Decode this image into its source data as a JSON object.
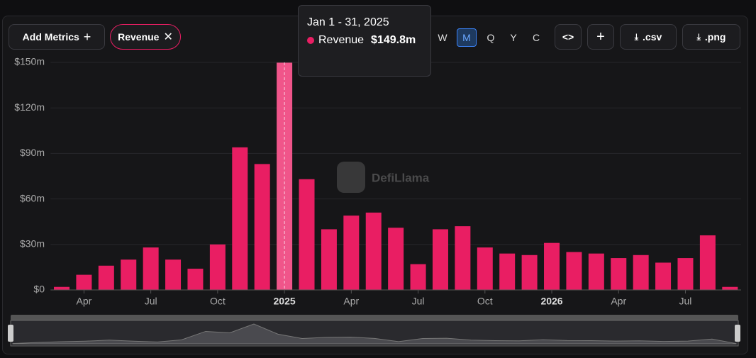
{
  "toolbar": {
    "add_metrics": "Add Metrics",
    "periods": [
      "W",
      "M",
      "Q",
      "Y",
      "C"
    ],
    "active_period": "M",
    "csv": ".csv",
    "png": ".png"
  },
  "watermark": "DefiLlama",
  "tooltip": {
    "title": "Jan 1 - 31, 2025",
    "value_label": "$149.8m"
  },
  "chart_data": {
    "type": "bar",
    "hover": 10,
    "grid": true,
    "categories": [
      null,
      "Apr",
      null,
      null,
      "Jul",
      null,
      null,
      "Oct",
      null,
      null,
      "2025",
      null,
      null,
      "Apr",
      null,
      null,
      "Jul",
      null,
      null,
      "Oct",
      null,
      null,
      "2026",
      null,
      null,
      "Apr",
      null,
      null,
      "Jul",
      null,
      null
    ],
    "series": [
      {
        "name": "Revenue",
        "color": "#e91e63",
        "values": [
          2,
          10,
          16,
          20,
          28,
          20,
          14,
          30,
          94,
          83,
          149.8,
          73,
          40,
          49,
          51,
          41,
          17,
          40,
          42,
          28,
          24,
          23,
          31,
          25,
          24,
          21,
          23,
          18,
          21,
          36,
          2
        ]
      }
    ],
    "ylim": [
      0,
      150
    ],
    "yticks": [
      {
        "value": 0,
        "label": "$0"
      },
      {
        "value": 30,
        "label": "$30m"
      },
      {
        "value": 60,
        "label": "$60m"
      },
      {
        "value": 90,
        "label": "$90m"
      },
      {
        "value": 120,
        "label": "$120m"
      },
      {
        "value": 150,
        "label": "$150m"
      }
    ]
  }
}
